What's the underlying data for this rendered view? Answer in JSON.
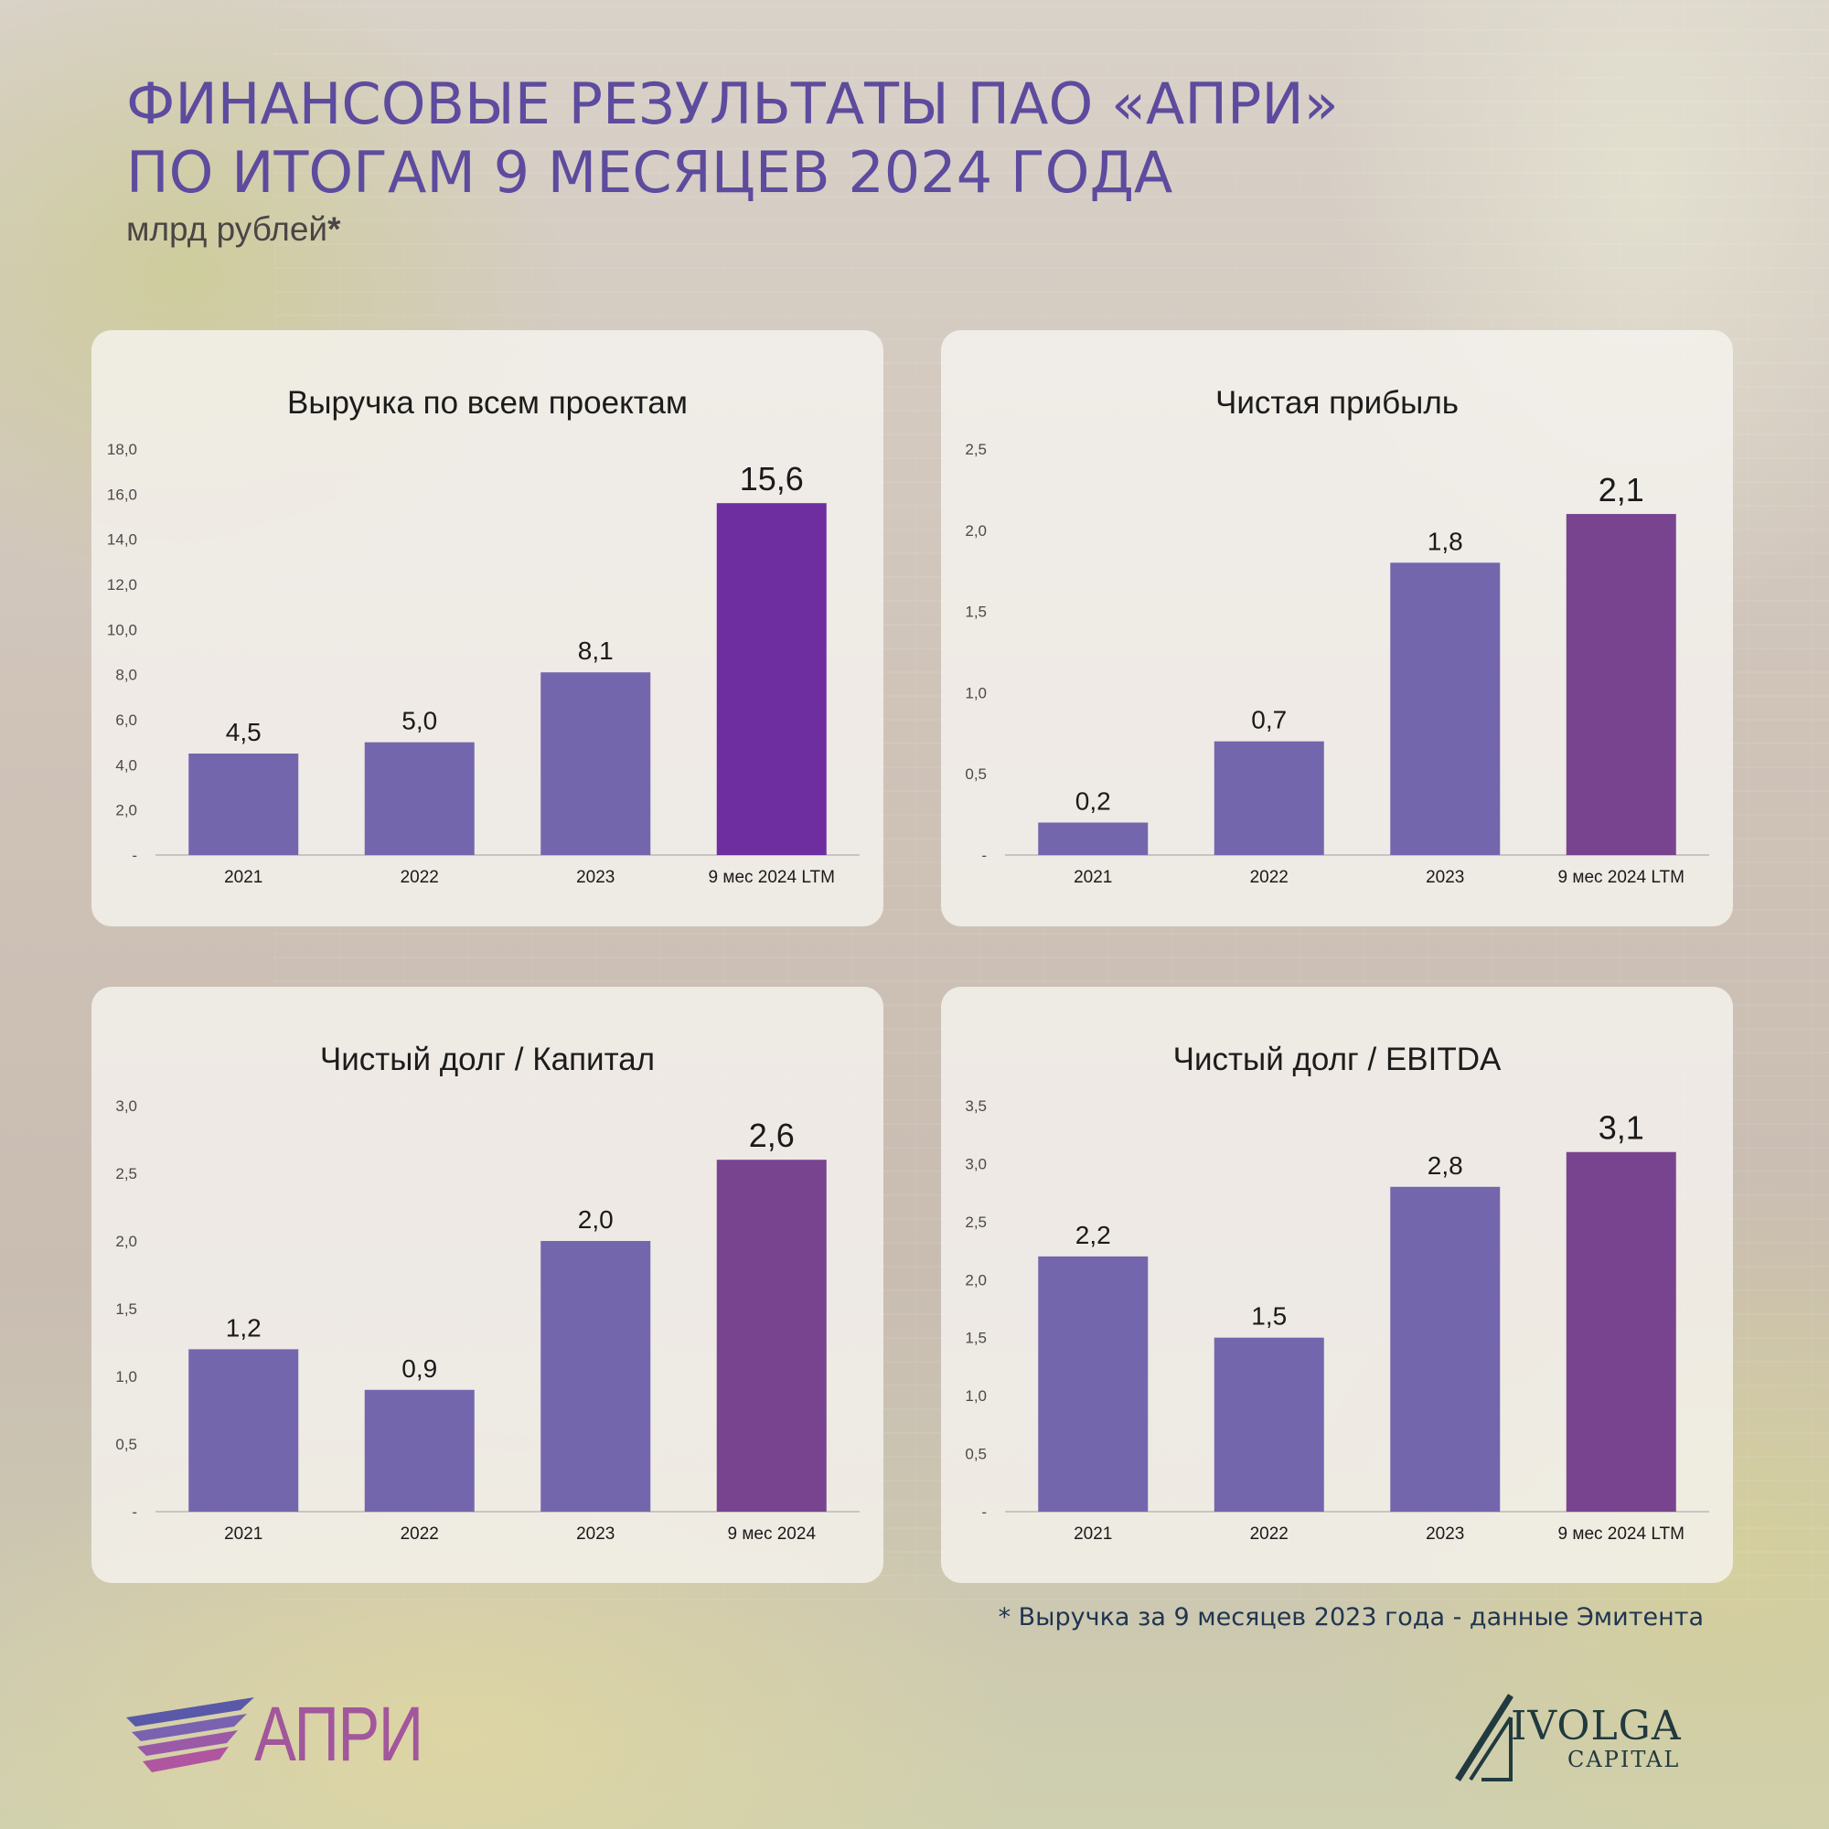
{
  "header": {
    "title_line1": "ФИНАНСОВЫЕ РЕЗУЛЬТАТЫ ПАО «АПРИ»",
    "title_line2": "ПО ИТОГАМ 9 МЕСЯЦЕВ 2024 ГОДА",
    "subtitle": "млрд рублей",
    "subtitle_mark": "*"
  },
  "colors": {
    "bar": "#7466ad",
    "bar_highlight_revenue": "#6e2ea0",
    "bar_highlight": "#784490",
    "axis": "#c9c4c4",
    "title": "#5d4b9e"
  },
  "chart_data": [
    {
      "type": "bar",
      "title": "Выручка по всем проектам",
      "categories": [
        "2021",
        "2022",
        "2023",
        "9 мес 2024 LTM"
      ],
      "values": [
        4.5,
        5.0,
        8.1,
        15.6
      ],
      "value_labels": [
        "4,5",
        "5,0",
        "8,1",
        "15,6"
      ],
      "yticks": [
        "-",
        "2,0",
        "4,0",
        "6,0",
        "8,0",
        "10,0",
        "12,0",
        "14,0",
        "16,0",
        "18,0"
      ],
      "ylim": [
        0,
        18
      ],
      "highlight": "bar_highlight_revenue",
      "grid": false,
      "legend": "none"
    },
    {
      "type": "bar",
      "title": "Чистая прибыль",
      "categories": [
        "2021",
        "2022",
        "2023",
        "9 мес 2024 LTM"
      ],
      "values": [
        0.2,
        0.7,
        1.8,
        2.1
      ],
      "value_labels": [
        "0,2",
        "0,7",
        "1,8",
        "2,1"
      ],
      "yticks": [
        "-",
        "0,5",
        "1,0",
        "1,5",
        "2,0",
        "2,5"
      ],
      "ylim": [
        0,
        2.5
      ],
      "highlight": "bar_highlight",
      "grid": false,
      "legend": "none"
    },
    {
      "type": "bar",
      "title": "Чистый долг / Капитал",
      "categories": [
        "2021",
        "2022",
        "2023",
        "9 мес 2024"
      ],
      "values": [
        1.2,
        0.9,
        2.0,
        2.6
      ],
      "value_labels": [
        "1,2",
        "0,9",
        "2,0",
        "2,6"
      ],
      "yticks": [
        "-",
        "0,5",
        "1,0",
        "1,5",
        "2,0",
        "2,5",
        "3,0"
      ],
      "ylim": [
        0,
        3.0
      ],
      "highlight": "bar_highlight",
      "grid": false,
      "legend": "none"
    },
    {
      "type": "bar",
      "title": "Чистый долг / EBITDA",
      "categories": [
        "2021",
        "2022",
        "2023",
        "9 мес 2024 LTM"
      ],
      "values": [
        2.2,
        1.5,
        2.8,
        3.1
      ],
      "value_labels": [
        "2,2",
        "1,5",
        "2,8",
        "3,1"
      ],
      "yticks": [
        "-",
        "0,5",
        "1,0",
        "1,5",
        "2,0",
        "2,5",
        "3,0",
        "3,5"
      ],
      "ylim": [
        0,
        3.5
      ],
      "highlight": "bar_highlight",
      "grid": false,
      "legend": "none"
    }
  ],
  "footnote": "* Выручка за 9 месяцев 2023 года - данные Эмитента",
  "logos": {
    "apri": "АПРИ",
    "ivolga_name": "IVOLGA",
    "ivolga_sub": "CAPITAL"
  }
}
